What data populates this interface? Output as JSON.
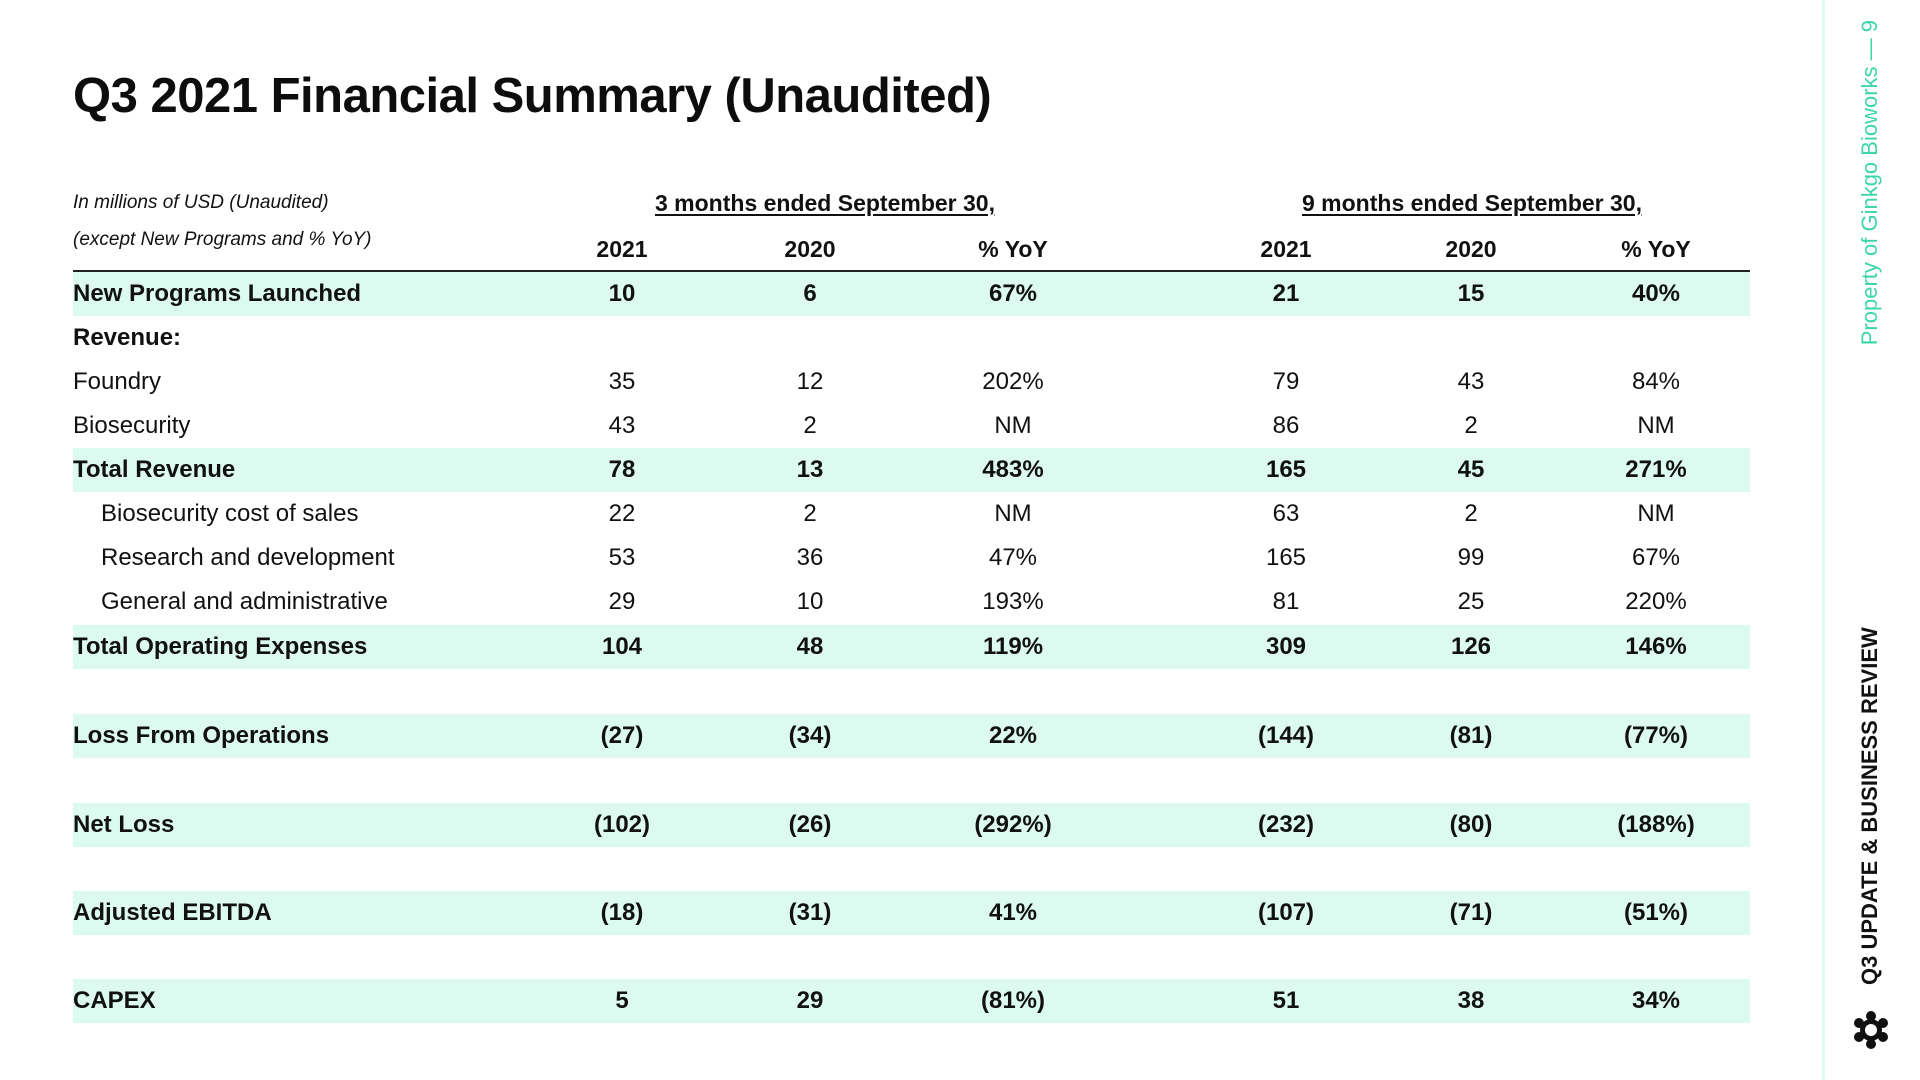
{
  "title": "Q3 2021 Financial Summary (Unaudited)",
  "units_note": {
    "line1": "In millions of USD (Unaudited)",
    "line2": "(except New Programs and % YoY)"
  },
  "periods": {
    "three_months": "3 months ended September 30,",
    "nine_months": "9 months ended September 30,"
  },
  "columns": [
    "2021",
    "2020",
    "% YoY",
    "2021",
    "2020",
    "% YoY"
  ],
  "rows": [
    {
      "label": "New Programs Launched",
      "values": [
        "10",
        "6",
        "67%",
        "21",
        "15",
        "40%"
      ]
    },
    {
      "label": "Revenue:",
      "values": []
    },
    {
      "label": "Foundry",
      "values": [
        "35",
        "12",
        "202%",
        "79",
        "43",
        "84%"
      ]
    },
    {
      "label": "Biosecurity",
      "values": [
        "43",
        "2",
        "NM",
        "86",
        "2",
        "NM"
      ]
    },
    {
      "label": "Total Revenue",
      "values": [
        "78",
        "13",
        "483%",
        "165",
        "45",
        "271%"
      ]
    },
    {
      "label": "Biosecurity cost of sales",
      "values": [
        "22",
        "2",
        "NM",
        "63",
        "2",
        "NM"
      ]
    },
    {
      "label": "Research and development",
      "values": [
        "53",
        "36",
        "47%",
        "165",
        "99",
        "67%"
      ]
    },
    {
      "label": "General and administrative",
      "values": [
        "29",
        "10",
        "193%",
        "81",
        "25",
        "220%"
      ]
    },
    {
      "label": "Total Operating Expenses",
      "values": [
        "104",
        "48",
        "119%",
        "309",
        "126",
        "146%"
      ]
    },
    {
      "label": "Loss From Operations",
      "values": [
        "(27)",
        "(34)",
        "22%",
        "(144)",
        "(81)",
        "(77%)"
      ]
    },
    {
      "label": "Net Loss",
      "values": [
        "(102)",
        "(26)",
        "(292%)",
        "(232)",
        "(80)",
        "(188%)"
      ]
    },
    {
      "label": "Adjusted EBITDA",
      "values": [
        "(18)",
        "(31)",
        "41%",
        "(107)",
        "(71)",
        "(51%)"
      ]
    },
    {
      "label": "CAPEX",
      "values": [
        "5",
        "29",
        "(81%)",
        "51",
        "38",
        "34%"
      ]
    }
  ],
  "sidebar": {
    "top_text": "Property of Ginkgo Bioworks — 9",
    "bottom_text": "Q3 UPDATE & BUSINESS REVIEW",
    "logo_icon": "ginkgo-logo-icon"
  },
  "colors": {
    "row_highlight": "#dcfaef",
    "accent": "#3dd6a9"
  }
}
